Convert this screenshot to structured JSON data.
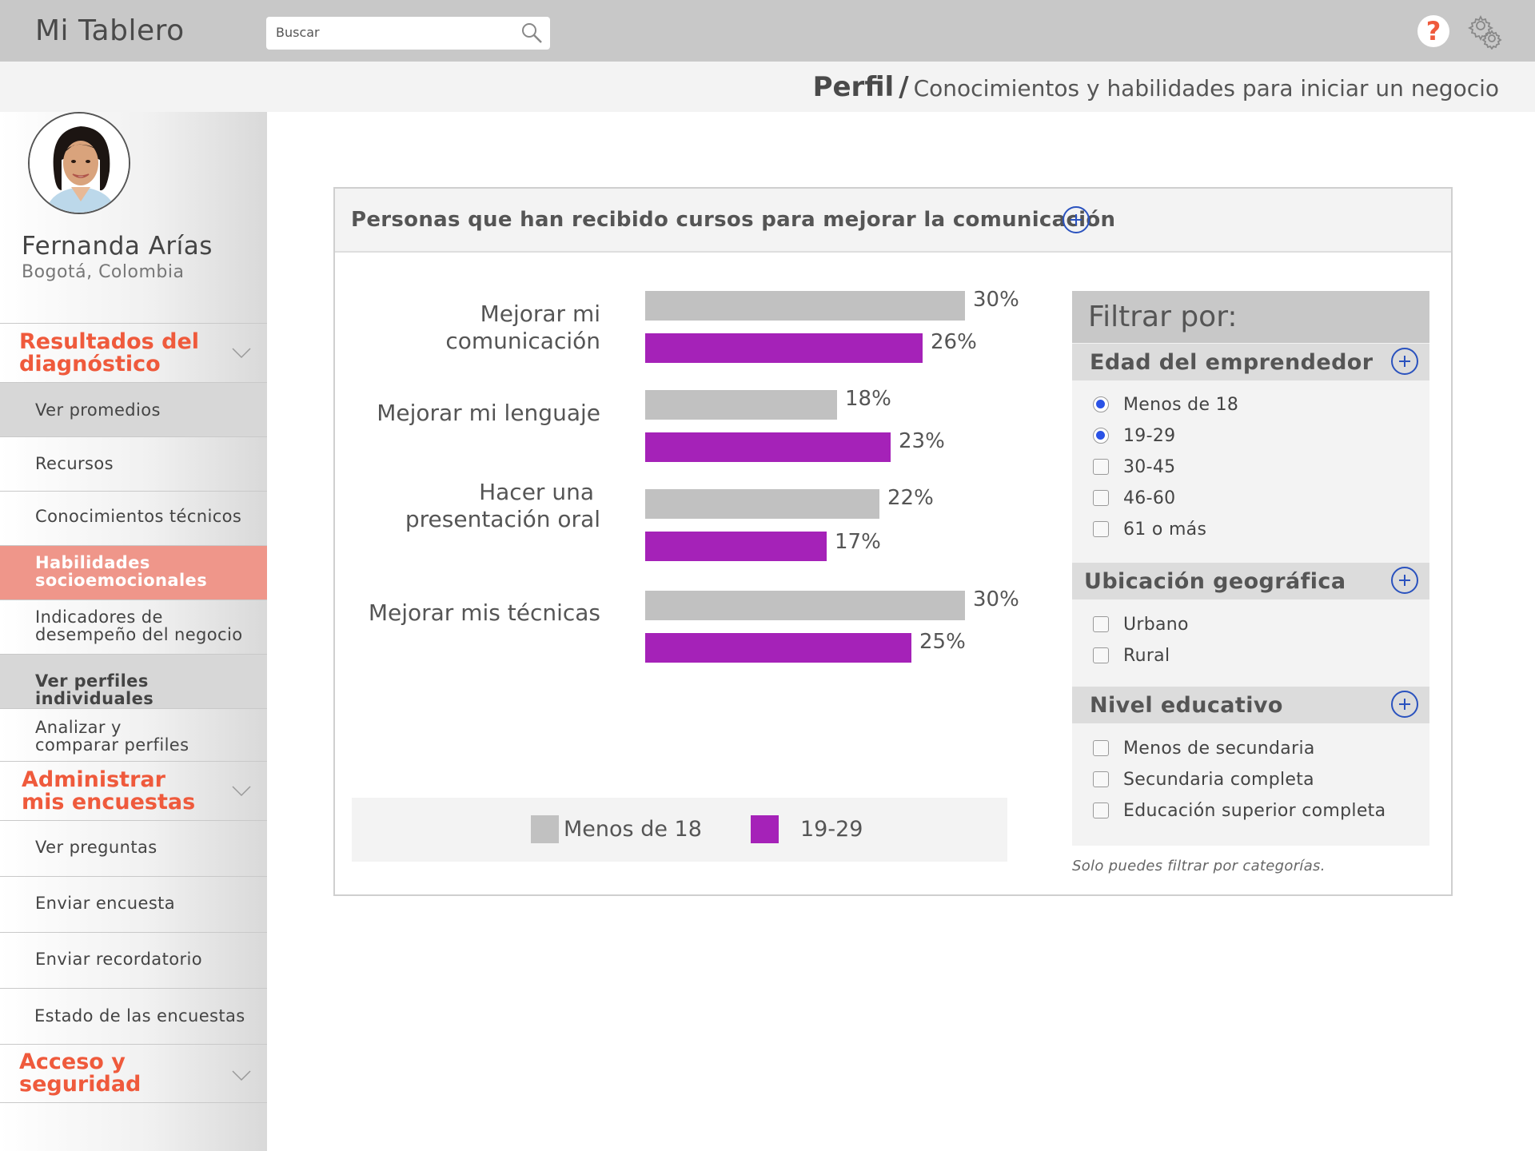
{
  "header": {
    "app_title": "Mi Tablero",
    "search_placeholder": "Buscar",
    "help_label": "?"
  },
  "breadcrumb": {
    "main": "Perfil",
    "separator": "/",
    "sub": "Conocimientos y habilidades para iniciar un negocio"
  },
  "user": {
    "name": "Fernanda Arías",
    "location": "Bogotá, Colombia"
  },
  "sidebar": {
    "sections": [
      {
        "label_line1": "Resultados del",
        "label_line2": "diagnóstico"
      },
      {
        "label_line1": "Administrar",
        "label_line2": "mis encuestas"
      },
      {
        "label_line1": "Acceso y",
        "label_line2": "seguridad"
      }
    ],
    "items": [
      {
        "line1": "Ver promedios",
        "line2": ""
      },
      {
        "line1": "Recursos",
        "line2": ""
      },
      {
        "line1": "Conocimientos técnicos",
        "line2": ""
      },
      {
        "line1": "Habilidades",
        "line2": "socioemocionales"
      },
      {
        "line1": "Indicadores de",
        "line2": "desempeño del negocio"
      },
      {
        "line1": "Ver perfiles individuales",
        "line2": ""
      },
      {
        "line1": "Analizar y",
        "line2": "comparar perfiles"
      },
      {
        "line1": "Ver preguntas",
        "line2": ""
      },
      {
        "line1": "Enviar encuesta",
        "line2": ""
      },
      {
        "line1": "Enviar recordatorio",
        "line2": ""
      },
      {
        "line1": "Estado de las encuestas",
        "line2": ""
      }
    ]
  },
  "card": {
    "title": "Personas que han recibido cursos para mejorar la comunicación"
  },
  "colors": {
    "series_a": "#c1c1c1",
    "series_b": "#a522b8",
    "accent": "#ef5a3c",
    "active_nav": "#ef968a",
    "link_blue": "#2a52be"
  },
  "chart_data": {
    "type": "bar",
    "orientation": "horizontal",
    "categories": [
      "Mejorar mi comunicación",
      "Mejorar mi lenguaje",
      "Hacer una presentación oral",
      "Mejorar mis técnicas"
    ],
    "category_lines": [
      [
        "Mejorar mi comunicación"
      ],
      [
        "Mejorar mi lenguaje"
      ],
      [
        "Hacer una",
        "presentación oral"
      ],
      [
        "Mejorar mis técnicas"
      ]
    ],
    "series": [
      {
        "name": "Menos de 18",
        "values": [
          30,
          18,
          22,
          30
        ],
        "labels": [
          "30%",
          "18%",
          "22%",
          "30%"
        ]
      },
      {
        "name": "19-29",
        "values": [
          26,
          23,
          17,
          25
        ],
        "labels": [
          "26%",
          "23%",
          "17%",
          "25%"
        ]
      }
    ],
    "xlim": [
      0,
      30
    ],
    "legend": "bottom"
  },
  "filters": {
    "title": "Filtrar por:",
    "groups": [
      {
        "title": "Edad del emprendedor",
        "type": "radio",
        "options": [
          {
            "label": "Menos de 18",
            "checked": true
          },
          {
            "label": "19-29",
            "checked": true
          },
          {
            "label": "30-45",
            "checked": false
          },
          {
            "label": "46-60",
            "checked": false
          },
          {
            "label": "61 o más",
            "checked": false
          }
        ]
      },
      {
        "title": "Ubicación geográfica",
        "type": "checkbox",
        "options": [
          {
            "label": "Urbano",
            "checked": false
          },
          {
            "label": "Rural",
            "checked": false
          }
        ]
      },
      {
        "title": "Nivel educativo",
        "type": "checkbox",
        "options": [
          {
            "label": "Menos de secundaria",
            "checked": false
          },
          {
            "label": "Secundaria completa",
            "checked": false
          },
          {
            "label": "Educación superior completa",
            "checked": false
          }
        ]
      }
    ],
    "note": "Solo puedes filtrar por categorías."
  }
}
